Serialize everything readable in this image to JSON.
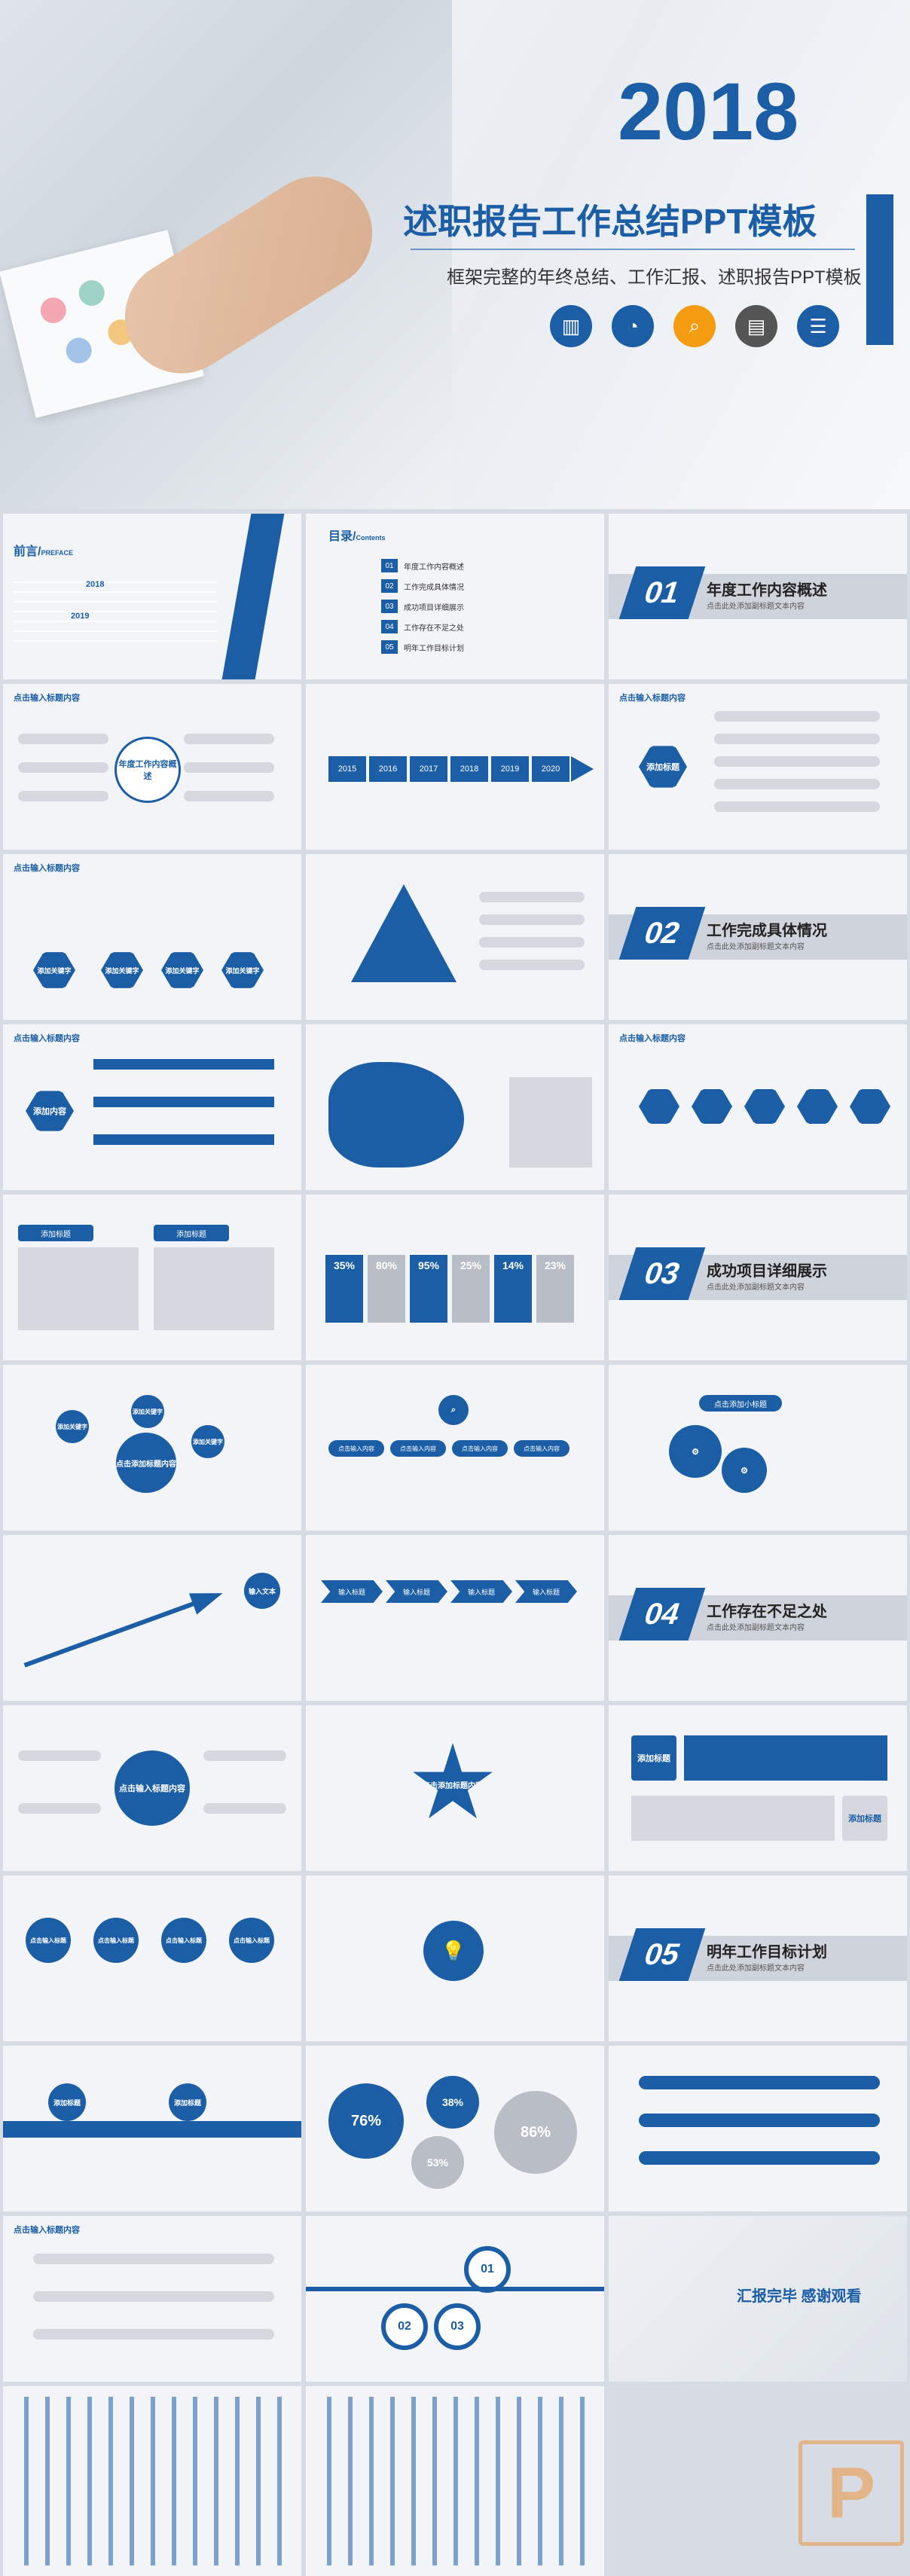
{
  "hero": {
    "year": "2018",
    "title": "述职报告工作总结PPT模板",
    "subtitle": "框架完整的年终总结、工作汇报、述职报告PPT模板",
    "icons": [
      {
        "name": "bar-chart-icon",
        "glyph": "▥",
        "color": "#1b5ea6"
      },
      {
        "name": "pie-chart-icon",
        "glyph": "◔",
        "color": "#1b5ea6"
      },
      {
        "name": "magnifier-icon",
        "glyph": "⌕",
        "color": "#f39c12"
      },
      {
        "name": "document-icon",
        "glyph": "▤",
        "color": "#555555"
      },
      {
        "name": "clipboard-icon",
        "glyph": "☰",
        "color": "#1b5ea6"
      }
    ]
  },
  "colors": {
    "accent": "#1b5ea6",
    "band": "#cfd3db",
    "bg": "#f3f4f7"
  },
  "preface": {
    "title": "前言/",
    "subtitle": "PREFACE",
    "year_text": "2018",
    "year_text_2": "2019"
  },
  "toc": {
    "title": "目录/",
    "subtitle": "Contents",
    "items": [
      {
        "num": "01",
        "label": "年度工作内容概述"
      },
      {
        "num": "02",
        "label": "工作完成具体情况"
      },
      {
        "num": "03",
        "label": "成功项目详细展示"
      },
      {
        "num": "04",
        "label": "工作存在不足之处"
      },
      {
        "num": "05",
        "label": "明年工作目标计划"
      }
    ]
  },
  "sections": [
    {
      "num": "01",
      "title": "年度工作内容概述",
      "sub": "点击此处添加副标题文本内容"
    },
    {
      "num": "02",
      "title": "工作完成具体情况",
      "sub": "点击此处添加副标题文本内容"
    },
    {
      "num": "03",
      "title": "成功项目详细展示",
      "sub": "点击此处添加副标题文本内容"
    },
    {
      "num": "04",
      "title": "工作存在不足之处",
      "sub": "点击此处添加副标题文本内容"
    },
    {
      "num": "05",
      "title": "明年工作目标计划",
      "sub": "点击此处添加副标题文本内容"
    }
  ],
  "slide_header": "点击输入标题内容",
  "labels": {
    "year_overview": "年度工作内容概述",
    "add_title": "添加标题",
    "add_content": "添加内容",
    "add_keyword": "添加关键字",
    "click_add_title": "点击添加标题内容",
    "input_title": "输入标题",
    "input_text": "输入文本",
    "click_input_title": "点击输入标题",
    "click_input_title_content": "点击输入标题内容",
    "click_input_content": "点击输入内容",
    "add_heading": "添加标题",
    "click_add_small_title": "点击添加小标题"
  },
  "timeline_years": [
    "2015",
    "2016",
    "2017",
    "2018",
    "2019",
    "2020"
  ],
  "percents": [
    "35%",
    "80%",
    "95%",
    "25%",
    "14%",
    "23%"
  ],
  "pie_stats": [
    "76%",
    "38%",
    "53%",
    "86%"
  ],
  "end": {
    "title": "汇报完毕 感谢观看"
  }
}
